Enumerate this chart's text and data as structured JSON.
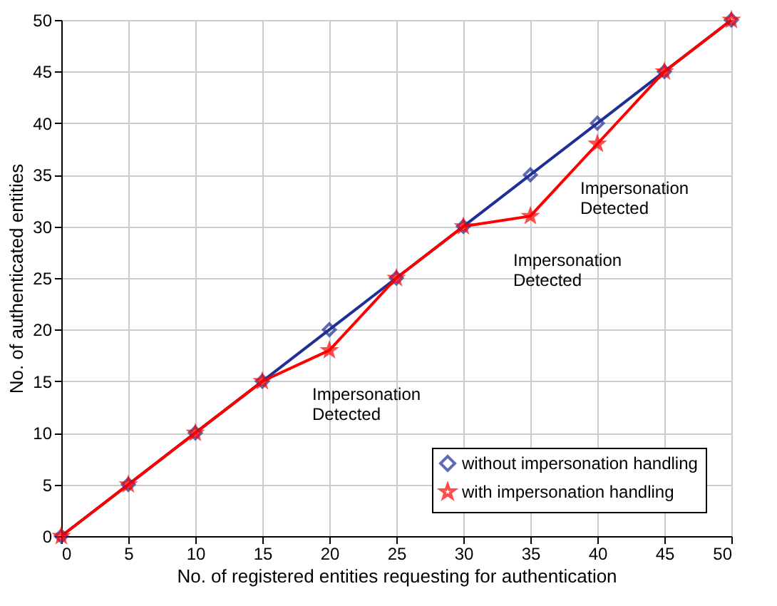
{
  "chart_data": {
    "type": "line",
    "xlabel": "No. of registered entities requesting for authentication",
    "ylabel": "No. of authenticated entities",
    "x": [
      0,
      5,
      10,
      15,
      20,
      25,
      30,
      35,
      40,
      45,
      50
    ],
    "series": [
      {
        "name": "without impersonation handling",
        "color": "#1f2f96",
        "marker": "diamond",
        "values": [
          0,
          5,
          10,
          15,
          20,
          25,
          30,
          35,
          40,
          45,
          50
        ]
      },
      {
        "name": "with impersonation handling",
        "color": "#ff0000",
        "marker": "star",
        "values": [
          0,
          5,
          10,
          15,
          18,
          25,
          30,
          31,
          38,
          45,
          50
        ]
      }
    ],
    "xlim": [
      0,
      50
    ],
    "xticks": [
      0,
      5,
      10,
      15,
      20,
      25,
      30,
      35,
      40,
      45,
      50
    ],
    "ylim": [
      0,
      50
    ],
    "yticks": [
      0,
      5,
      10,
      15,
      20,
      25,
      30,
      35,
      40,
      45,
      50
    ],
    "grid": true,
    "legend": "bottom right",
    "line_style": "solid",
    "annotations": [
      {
        "text": "Impersonation\nDetected",
        "x": 20,
        "y": 18
      },
      {
        "text": "Impersonation\nDetected",
        "x": 35,
        "y": 31
      },
      {
        "text": "Impersonation\nDetected",
        "x": 40,
        "y": 38
      }
    ]
  }
}
